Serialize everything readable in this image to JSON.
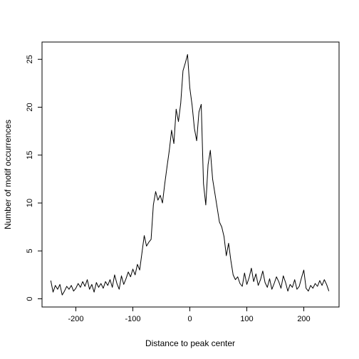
{
  "chart_data": {
    "type": "line",
    "title": "",
    "xlabel": "Distance to peak center",
    "ylabel": "Number of motif occurrences",
    "xlim": [
      -250,
      250
    ],
    "ylim": [
      0,
      26
    ],
    "xticks": [
      -200,
      -100,
      0,
      100,
      200
    ],
    "yticks": [
      0,
      5,
      10,
      15,
      20,
      25
    ],
    "grid": false,
    "legend": "none",
    "line_color": "#000000",
    "series": [
      {
        "x": [
          -244,
          -240,
          -236,
          -232,
          -228,
          -224,
          -220,
          -216,
          -212,
          -208,
          -204,
          -200,
          -196,
          -192,
          -188,
          -184,
          -180,
          -176,
          -172,
          -168,
          -164,
          -160,
          -156,
          -152,
          -148,
          -144,
          -140,
          -136,
          -132,
          -128,
          -124,
          -120,
          -116,
          -112,
          -108,
          -104,
          -100,
          -96,
          -92,
          -88,
          -84,
          -80,
          -76,
          -72,
          -68,
          -64,
          -60,
          -56,
          -52,
          -48,
          -44,
          -40,
          -36,
          -32,
          -28,
          -24,
          -20,
          -16,
          -12,
          -8,
          -4,
          0,
          4,
          8,
          12,
          16,
          20,
          24,
          28,
          32,
          36,
          40,
          44,
          48,
          52,
          56,
          60,
          64,
          68,
          72,
          76,
          80,
          84,
          88,
          92,
          96,
          100,
          104,
          108,
          112,
          116,
          120,
          124,
          128,
          132,
          136,
          140,
          144,
          148,
          152,
          156,
          160,
          164,
          168,
          172,
          176,
          180,
          184,
          188,
          192,
          196,
          200,
          204,
          208,
          212,
          216,
          220,
          224,
          228,
          232,
          236,
          240,
          244
        ],
        "values": [
          1.9,
          0.7,
          1.4,
          1.0,
          1.5,
          0.4,
          0.8,
          1.3,
          1.0,
          1.4,
          0.8,
          1.1,
          1.6,
          1.2,
          1.8,
          1.3,
          2.0,
          1.0,
          1.5,
          0.7,
          1.7,
          1.2,
          1.6,
          1.1,
          1.8,
          1.4,
          2.0,
          1.2,
          2.5,
          1.6,
          1.0,
          2.4,
          1.5,
          2.1,
          2.8,
          2.3,
          3.1,
          2.5,
          3.6,
          3.0,
          4.8,
          6.6,
          5.5,
          5.9,
          6.2,
          9.8,
          11.2,
          10.3,
          10.8,
          10.0,
          12.0,
          13.8,
          15.5,
          17.6,
          16.2,
          19.8,
          18.5,
          20.4,
          23.8,
          24.6,
          25.5,
          22.0,
          20.2,
          17.8,
          16.5,
          19.5,
          20.3,
          12.0,
          9.8,
          14.0,
          15.5,
          12.5,
          11.0,
          9.5,
          8.0,
          7.5,
          6.5,
          4.5,
          5.8,
          4.0,
          2.5,
          2.0,
          2.3,
          1.6,
          1.3,
          2.7,
          1.5,
          2.2,
          3.2,
          1.8,
          2.6,
          1.4,
          2.0,
          2.9,
          1.7,
          1.2,
          2.1,
          1.0,
          1.6,
          2.3,
          1.8,
          1.1,
          2.4,
          1.7,
          0.8,
          1.5,
          1.2,
          2.0,
          1.0,
          1.3,
          2.2,
          3.0,
          1.1,
          0.8,
          1.4,
          1.1,
          1.6,
          1.3,
          1.9,
          1.4,
          2.0,
          1.5,
          0.8
        ]
      }
    ]
  }
}
